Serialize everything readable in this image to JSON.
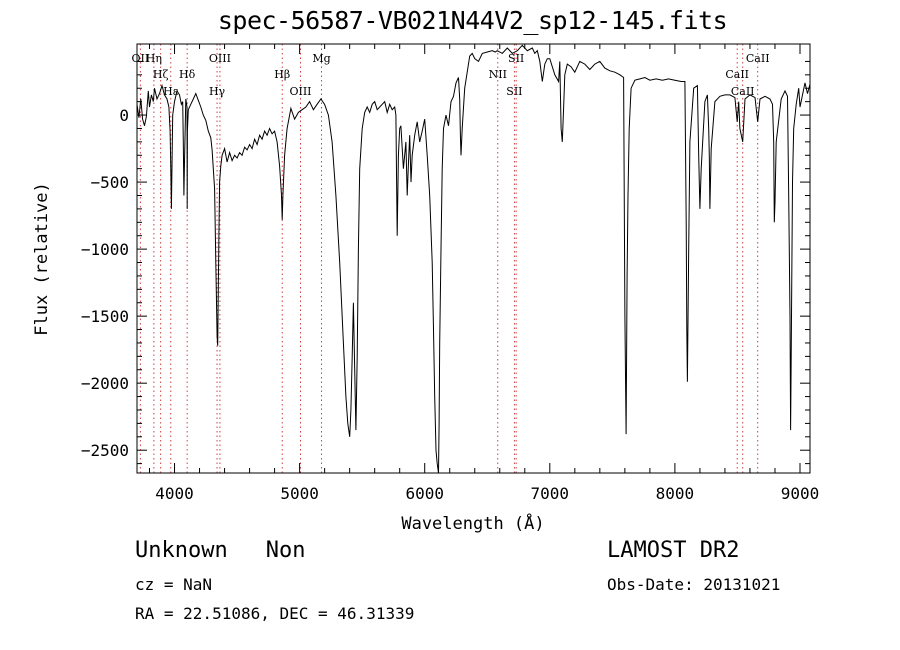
{
  "title": "spec-56587-VB021N44V2_sp12-145.fits",
  "footer": {
    "class_label": "Unknown",
    "subclass_label": "Non",
    "survey": "LAMOST DR2",
    "cz": "cz = NaN",
    "obs_date": "Obs-Date: 20131021",
    "radec": "RA =  22.51086, DEC =  46.31339"
  },
  "chart_data": {
    "type": "line",
    "title": "spec-56587-VB021N44V2_sp12-145.fits",
    "xlabel": "Wavelength (Å)",
    "ylabel": "Flux (relative)",
    "xlim": [
      3700,
      9080
    ],
    "ylim": [
      -2670,
      530
    ],
    "x_ticks": [
      4000,
      5000,
      6000,
      7000,
      8000,
      9000
    ],
    "y_ticks": [
      0,
      -500,
      -1000,
      -1500,
      -2000,
      -2500
    ],
    "grid": false,
    "line_color": "#000000",
    "marker_color": "#d04040",
    "series": [
      {
        "x": [
          3700,
          3715,
          3730,
          3745,
          3760,
          3775,
          3790,
          3800,
          3815,
          3830,
          3840,
          3860,
          3880,
          3900,
          3920,
          3940,
          3955,
          3965,
          3970,
          3975,
          3985,
          4000,
          4020,
          4040,
          4055,
          4065,
          4070,
          4075,
          4080,
          4090,
          4100,
          4101,
          4103,
          4110,
          4130,
          4150,
          4170,
          4190,
          4210,
          4230,
          4250,
          4270,
          4290,
          4300,
          4310,
          4320,
          4330,
          4340,
          4345,
          4350,
          4355,
          4360,
          4370,
          4380,
          4400,
          4420,
          4440,
          4460,
          4480,
          4500,
          4520,
          4540,
          4560,
          4580,
          4600,
          4620,
          4640,
          4660,
          4680,
          4700,
          4720,
          4740,
          4760,
          4780,
          4800,
          4820,
          4840,
          4855,
          4861,
          4866,
          4880,
          4900,
          4930,
          4960,
          4990,
          5020,
          5050,
          5080,
          5110,
          5140,
          5170,
          5200,
          5230,
          5260,
          5290,
          5320,
          5350,
          5370,
          5385,
          5400,
          5410,
          5420,
          5430,
          5440,
          5450,
          5460,
          5470,
          5480,
          5500,
          5520,
          5540,
          5560,
          5580,
          5600,
          5620,
          5640,
          5660,
          5680,
          5700,
          5720,
          5740,
          5760,
          5770,
          5775,
          5780,
          5790,
          5800,
          5810,
          5830,
          5850,
          5860,
          5870,
          5880,
          5890,
          5900,
          5920,
          5940,
          5960,
          5980,
          6000,
          6020,
          6040,
          6060,
          6070,
          6080,
          6090,
          6100,
          6110,
          6115,
          6120,
          6130,
          6140,
          6150,
          6170,
          6190,
          6210,
          6230,
          6250,
          6270,
          6280,
          6285,
          6290,
          6300,
          6320,
          6340,
          6360,
          6380,
          6400,
          6430,
          6460,
          6500,
          6540,
          6563,
          6580,
          6620,
          6660,
          6700,
          6740,
          6780,
          6820,
          6860,
          6880,
          6900,
          6920,
          6940,
          6960,
          6980,
          7000,
          7040,
          7070,
          7080,
          7090,
          7100,
          7110,
          7120,
          7140,
          7170,
          7200,
          7240,
          7280,
          7320,
          7360,
          7400,
          7440,
          7480,
          7520,
          7560,
          7590,
          7600,
          7610,
          7618,
          7625,
          7635,
          7650,
          7680,
          7720,
          7760,
          7800,
          7850,
          7900,
          7950,
          8000,
          8050,
          8080,
          8090,
          8095,
          8100,
          8110,
          8120,
          8150,
          8180,
          8190,
          8195,
          8200,
          8210,
          8240,
          8260,
          8270,
          8275,
          8280,
          8290,
          8320,
          8360,
          8400,
          8440,
          8480,
          8498,
          8510,
          8520,
          8542,
          8560,
          8600,
          8640,
          8662,
          8680,
          8720,
          8760,
          8780,
          8790,
          8795,
          8800,
          8810,
          8850,
          8880,
          8900,
          8910,
          8920,
          8925,
          8930,
          8940,
          8950,
          8970,
          8990,
          9000,
          9020,
          9040,
          9060,
          9080
        ],
        "y": [
          80,
          -20,
          120,
          -30,
          -80,
          -10,
          180,
          60,
          150,
          100,
          200,
          120,
          160,
          220,
          150,
          120,
          60,
          -120,
          -400,
          -700,
          0,
          100,
          180,
          150,
          80,
          100,
          -200,
          -600,
          -350,
          120,
          60,
          -700,
          -120,
          40,
          80,
          120,
          160,
          110,
          60,
          0,
          -40,
          -120,
          -170,
          -260,
          -400,
          -550,
          -1100,
          -1650,
          -1720,
          -1300,
          -900,
          -500,
          -380,
          -300,
          -250,
          -350,
          -280,
          -340,
          -300,
          -320,
          -280,
          -300,
          -240,
          -260,
          -220,
          -250,
          -180,
          -220,
          -150,
          -180,
          -120,
          -150,
          -100,
          -140,
          -120,
          -200,
          -380,
          -600,
          -780,
          -600,
          -300,
          -100,
          50,
          -30,
          20,
          40,
          60,
          100,
          40,
          80,
          120,
          80,
          0,
          -200,
          -600,
          -1100,
          -1700,
          -2100,
          -2300,
          -2400,
          -2200,
          -1800,
          -1400,
          -1900,
          -2350,
          -1800,
          -1000,
          -400,
          -100,
          20,
          60,
          20,
          80,
          100,
          40,
          60,
          80,
          100,
          20,
          80,
          40,
          60,
          0,
          -500,
          -900,
          -300,
          -100,
          -80,
          -400,
          -200,
          -600,
          -350,
          -150,
          -500,
          -300,
          -150,
          -50,
          -200,
          -120,
          -30,
          -300,
          -600,
          -1100,
          -1600,
          -2100,
          -2500,
          -2600,
          -2670,
          -2300,
          -1700,
          -1000,
          -400,
          -100,
          0,
          -80,
          100,
          140,
          240,
          280,
          120,
          -150,
          -300,
          -100,
          200,
          320,
          440,
          460,
          420,
          400,
          460,
          470,
          480,
          470,
          480,
          460,
          500,
          460,
          480,
          520,
          480,
          500,
          460,
          480,
          400,
          250,
          380,
          420,
          420,
          300,
          250,
          400,
          -100,
          -200,
          50,
          300,
          380,
          360,
          320,
          400,
          380,
          340,
          380,
          400,
          350,
          330,
          320,
          300,
          280,
          -1500,
          -2380,
          -1200,
          -600,
          -100,
          200,
          260,
          270,
          280,
          260,
          270,
          260,
          270,
          260,
          250,
          250,
          -800,
          -1600,
          -1990,
          -1000,
          -200,
          200,
          220,
          -300,
          -500,
          -700,
          -400,
          100,
          150,
          -100,
          -300,
          -700,
          -250,
          100,
          140,
          150,
          150,
          130,
          -50,
          100,
          -100,
          -200,
          120,
          150,
          130,
          -50,
          120,
          140,
          120,
          80,
          -200,
          -800,
          -650,
          -200,
          120,
          180,
          140,
          -600,
          -1500,
          -2350,
          -1800,
          -500,
          -100,
          80,
          200,
          60,
          150,
          240,
          160,
          230
        ]
      }
    ],
    "spectral_lines": [
      {
        "label": "Hη",
        "wl": 3835
      },
      {
        "label": "Hζ",
        "wl": 3889
      },
      {
        "label": "Hε",
        "wl": 3970
      },
      {
        "label": "OII",
        "wl": 3727
      },
      {
        "label": "Hδ",
        "wl": 4101
      },
      {
        "label": "Hγ",
        "wl": 4340
      },
      {
        "label": "OIII",
        "wl": 4363
      },
      {
        "label": "Hβ",
        "wl": 4861
      },
      {
        "label": "OIII",
        "wl": 5007
      },
      {
        "label": "Mg",
        "wl": 5175
      },
      {
        "label": "NII",
        "wl": 6584
      },
      {
        "label": "SII",
        "wl": 6717
      },
      {
        "label": "SII",
        "wl": 6731
      },
      {
        "label": "CaII",
        "wl": 8498
      },
      {
        "label": "CaII",
        "wl": 8542
      },
      {
        "label": "CaII",
        "wl": 8662
      }
    ]
  }
}
